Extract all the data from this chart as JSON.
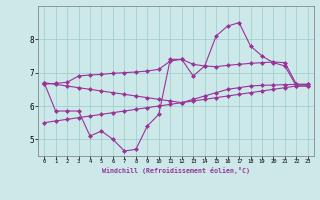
{
  "xlabel": "Windchill (Refroidissement éolien,°C)",
  "bg_color": "#cce8e8",
  "grid_color": "#99cccc",
  "line_color": "#993399",
  "ylim": [
    4.5,
    9.0
  ],
  "yticks": [
    5,
    6,
    7,
    8
  ],
  "xticks": [
    0,
    1,
    2,
    3,
    4,
    5,
    6,
    7,
    8,
    9,
    10,
    11,
    12,
    13,
    14,
    15,
    16,
    17,
    18,
    19,
    20,
    21,
    22,
    23
  ],
  "line1_x": [
    0,
    1,
    2,
    3,
    4,
    5,
    6,
    7,
    8,
    9,
    10,
    11,
    12,
    13,
    14,
    15,
    16,
    17,
    18,
    19,
    20,
    21,
    22,
    23
  ],
  "line1_y": [
    6.7,
    6.65,
    6.6,
    6.55,
    6.5,
    6.45,
    6.4,
    6.35,
    6.3,
    6.25,
    6.2,
    6.15,
    6.1,
    6.2,
    6.3,
    6.4,
    6.5,
    6.55,
    6.6,
    6.62,
    6.63,
    6.64,
    6.65,
    6.65
  ],
  "line2_x": [
    0,
    1,
    2,
    3,
    4,
    5,
    6,
    7,
    8,
    9,
    10,
    11,
    12,
    13,
    14,
    15,
    16,
    17,
    18,
    19,
    20,
    21,
    22,
    23
  ],
  "line2_y": [
    6.65,
    6.68,
    6.71,
    6.9,
    6.93,
    6.95,
    6.98,
    7.0,
    7.02,
    7.05,
    7.1,
    7.35,
    7.4,
    7.25,
    7.2,
    7.18,
    7.22,
    7.25,
    7.28,
    7.3,
    7.32,
    7.3,
    6.65,
    6.65
  ],
  "line3_x": [
    0,
    1,
    2,
    3,
    4,
    5,
    6,
    7,
    8,
    9,
    10,
    11,
    12,
    13,
    14,
    15,
    16,
    17,
    18,
    19,
    20,
    21,
    22,
    23
  ],
  "line3_y": [
    6.7,
    5.85,
    5.85,
    5.85,
    5.1,
    5.25,
    5.0,
    4.65,
    4.7,
    5.4,
    5.75,
    7.4,
    7.4,
    6.9,
    7.2,
    8.1,
    8.4,
    8.5,
    7.8,
    7.5,
    7.3,
    7.2,
    6.6,
    6.6
  ],
  "line4_x": [
    0,
    1,
    2,
    3,
    4,
    5,
    6,
    7,
    8,
    9,
    10,
    11,
    12,
    13,
    14,
    15,
    16,
    17,
    18,
    19,
    20,
    21,
    22,
    23
  ],
  "line4_y": [
    5.5,
    5.55,
    5.6,
    5.65,
    5.7,
    5.75,
    5.8,
    5.85,
    5.9,
    5.95,
    6.0,
    6.05,
    6.1,
    6.15,
    6.2,
    6.25,
    6.3,
    6.35,
    6.4,
    6.45,
    6.5,
    6.55,
    6.6,
    6.6
  ]
}
